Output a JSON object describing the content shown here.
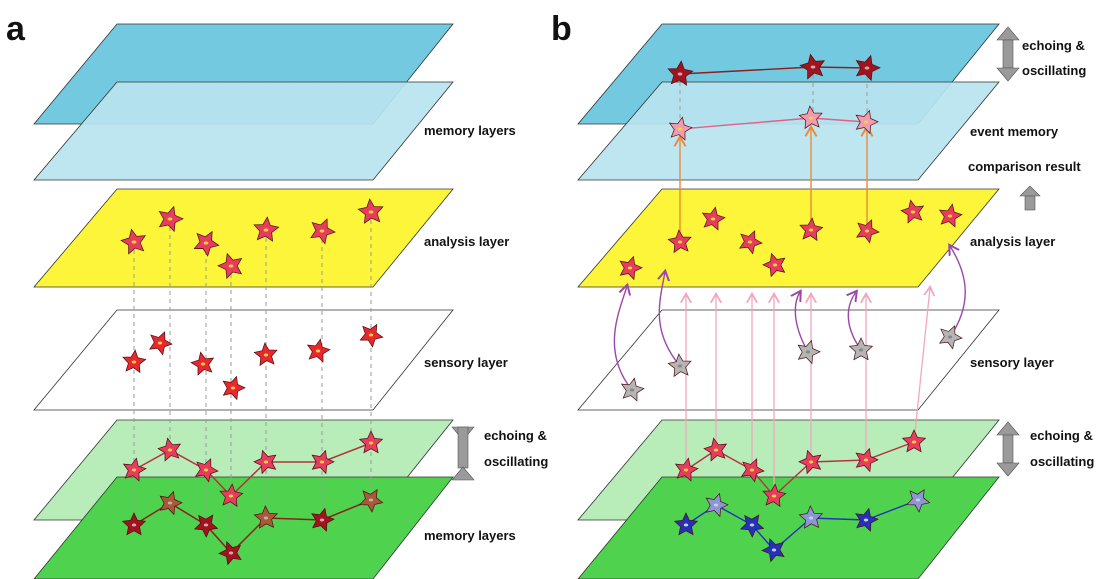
{
  "panels": {
    "a": {
      "letter": "a",
      "labels": {
        "memory_top": "memory layers",
        "analysis": "analysis layer",
        "sensory": "sensory layer",
        "echo_line1": "echoing &",
        "echo_line2": "oscillating",
        "memory_bottom": "memory layers"
      }
    },
    "b": {
      "letter": "b",
      "labels": {
        "echo_top_line1": "echoing &",
        "echo_top_line2": "oscillating",
        "event_memory": "event memory",
        "comparison_result": "comparison result",
        "analysis": "analysis layer",
        "sensory": "sensory layer",
        "echo_bottom_line1": "echoing &",
        "echo_bottom_line2": "oscillating"
      }
    }
  },
  "colors": {
    "memory_upper": "#73c9e0",
    "memory_upper_light": "#b9e4ef",
    "analysis": "#fcf53a",
    "sensory": "#ffffff",
    "memory_lower_light": "#b8ecb8",
    "memory_lower": "#4fd34f",
    "neuron_active": "#e83c5e",
    "neuron_dark": "#a3121f",
    "neuron_brown": "#a65a38",
    "neuron_pink": "#f19bb0",
    "neuron_blue": "#2531b8",
    "neuron_lavender": "#8c95d6",
    "neuron_gray": "#b5b5b5",
    "arrow_purple": "#9a48a8",
    "arrow_orange": "#ec8a3a",
    "arrow_pink": "#f1a7c0",
    "echo_arrow": "#9a9a9a"
  }
}
